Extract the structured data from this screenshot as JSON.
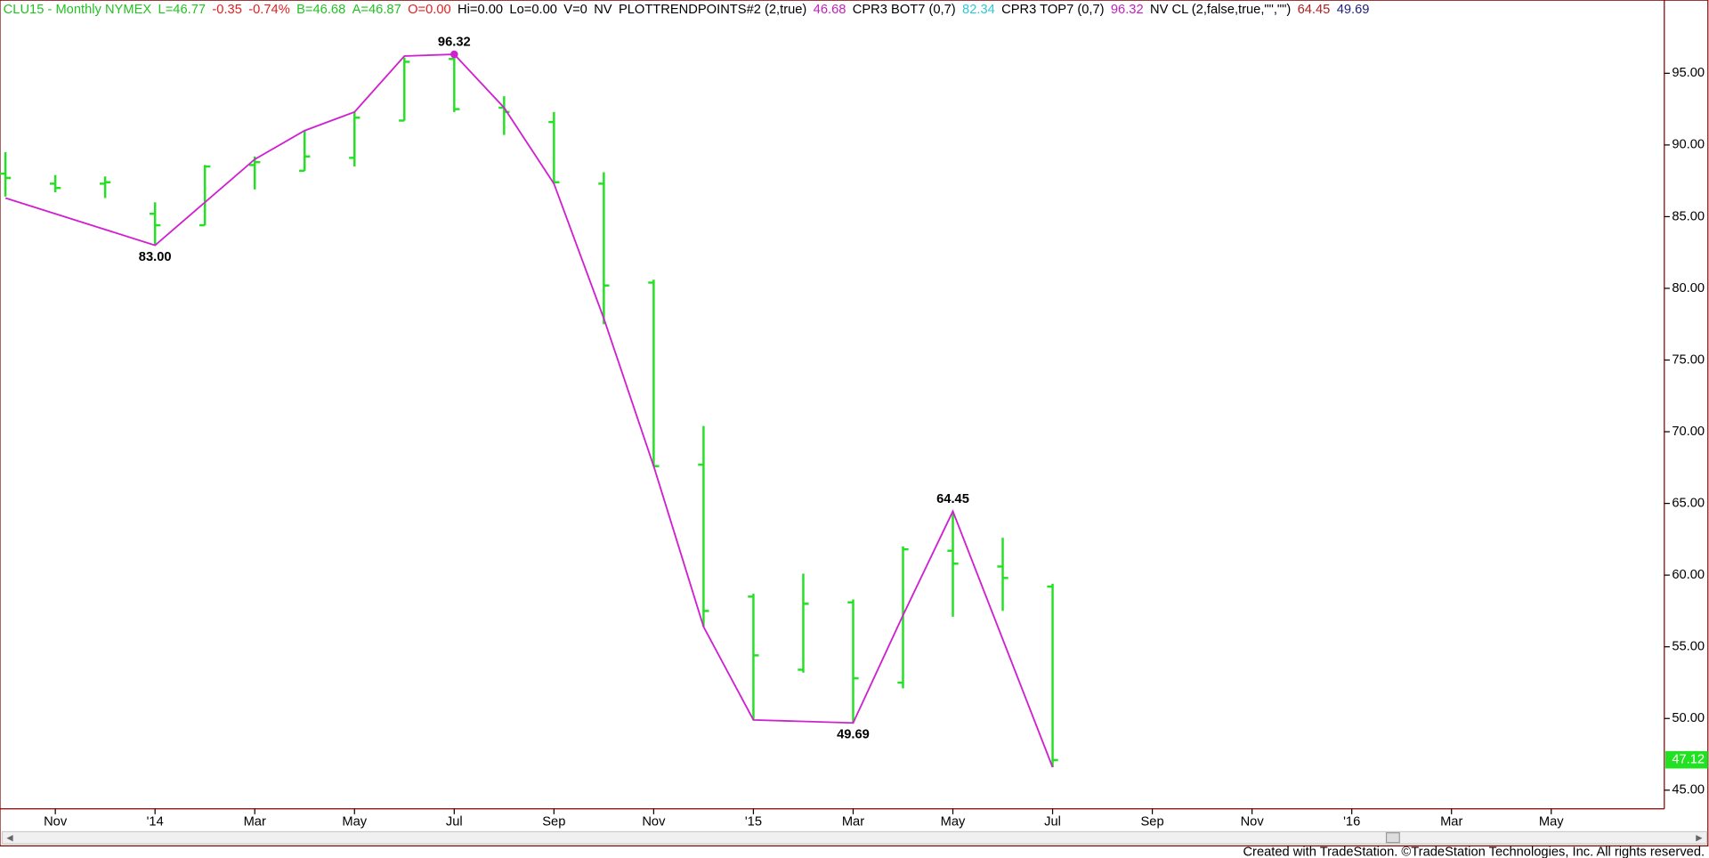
{
  "header": {
    "items": [
      {
        "text": "CLU15 - Monthly  NYMEX",
        "color": "#22c322"
      },
      {
        "text": "L=46.77",
        "color": "#22c322"
      },
      {
        "text": "-0.35",
        "color": "#e02020"
      },
      {
        "text": "-0.74%",
        "color": "#e02020"
      },
      {
        "text": "B=46.68",
        "color": "#22c322"
      },
      {
        "text": "A=46.87",
        "color": "#22c322"
      },
      {
        "text": "O=0.00",
        "color": "#e02020"
      },
      {
        "text": "Hi=0.00",
        "color": "#000000"
      },
      {
        "text": "Lo=0.00",
        "color": "#000000"
      },
      {
        "text": "V=0",
        "color": "#000000"
      },
      {
        "text": "NV",
        "color": "#000000"
      },
      {
        "text": "PLOTTRENDPOINTS#2 (2,true)",
        "color": "#000000"
      },
      {
        "text": "46.68",
        "color": "#c020c0"
      },
      {
        "text": "CPR3 BOT7 (0,7)",
        "color": "#000000"
      },
      {
        "text": "82.34",
        "color": "#30c8d8"
      },
      {
        "text": "CPR3 TOP7 (0,7)",
        "color": "#000000"
      },
      {
        "text": "96.32",
        "color": "#c020c0"
      },
      {
        "text": "NV CL (2,false,true,\"\",\"\")",
        "color": "#000000"
      },
      {
        "text": "64.45",
        "color": "#b02020"
      },
      {
        "text": "49.69",
        "color": "#202080"
      }
    ]
  },
  "chart_data": {
    "type": "ohlc",
    "xtick_labels": [
      "Nov",
      "'14",
      "Mar",
      "May",
      "Jul",
      "Sep",
      "Nov",
      "'15",
      "Mar",
      "May",
      "Jul",
      "Sep",
      "Nov",
      "'16",
      "Mar",
      "May"
    ],
    "series": [
      {
        "name": "CLU15",
        "color": "#22e022",
        "open": [
          88.0,
          87.3,
          87.3,
          85.2,
          84.4,
          88.6,
          88.2,
          89.1,
          91.7,
          96.0,
          92.6,
          91.6,
          87.3,
          80.4,
          67.7,
          58.5,
          53.4,
          58.1,
          52.5,
          61.7,
          60.6,
          59.2
        ],
        "high": [
          89.5,
          87.9,
          87.8,
          86.0,
          88.6,
          89.2,
          91.0,
          92.3,
          96.1,
          96.32,
          93.4,
          92.3,
          88.1,
          80.6,
          70.4,
          58.7,
          60.1,
          58.3,
          62.0,
          64.45,
          62.6,
          59.4
        ],
        "low": [
          86.4,
          86.7,
          86.3,
          83.0,
          84.4,
          86.9,
          88.2,
          88.5,
          91.7,
          92.3,
          90.7,
          87.3,
          77.5,
          67.6,
          56.4,
          49.9,
          53.2,
          49.69,
          52.1,
          57.1,
          57.5,
          46.6
        ],
        "close": [
          87.7,
          87.0,
          87.4,
          84.4,
          88.5,
          88.8,
          89.2,
          91.9,
          95.8,
          92.5,
          92.3,
          87.4,
          80.2,
          67.6,
          57.5,
          54.4,
          58.0,
          52.8,
          61.8,
          60.8,
          59.8,
          47.1
        ]
      }
    ],
    "trend": {
      "color": "#d020d0",
      "values": [
        86.3,
        null,
        null,
        83.0,
        null,
        89.0,
        91.0,
        92.3,
        96.2,
        96.32,
        92.6,
        87.3,
        77.9,
        67.6,
        56.4,
        49.9,
        null,
        49.69,
        57.2,
        64.45,
        null,
        46.6
      ]
    },
    "annotations": [
      {
        "label": "96.32",
        "value": 96.32
      },
      {
        "label": "83.00",
        "value": 83.0
      },
      {
        "label": "49.69",
        "value": 49.69
      },
      {
        "label": "64.45",
        "value": 64.45
      }
    ],
    "last_price": {
      "value": 47.12,
      "label": "47.12",
      "color": "#22e022"
    },
    "ylim": [
      43.7,
      100.1
    ],
    "yticks": [
      {
        "value": 45,
        "label": "45.00"
      },
      {
        "value": 50,
        "label": "50.00"
      },
      {
        "value": 55,
        "label": "55.00"
      },
      {
        "value": 60,
        "label": "60.00"
      },
      {
        "value": 65,
        "label": "65.00"
      },
      {
        "value": 70,
        "label": "70.00"
      },
      {
        "value": 75,
        "label": "75.00"
      },
      {
        "value": 80,
        "label": "80.00"
      },
      {
        "value": 85,
        "label": "85.00"
      },
      {
        "value": 90,
        "label": "90.00"
      },
      {
        "value": 95,
        "label": "95.00"
      }
    ]
  },
  "footer": "Created with TradeStation. ©TradeStation Technologies, Inc. All rights reserved."
}
